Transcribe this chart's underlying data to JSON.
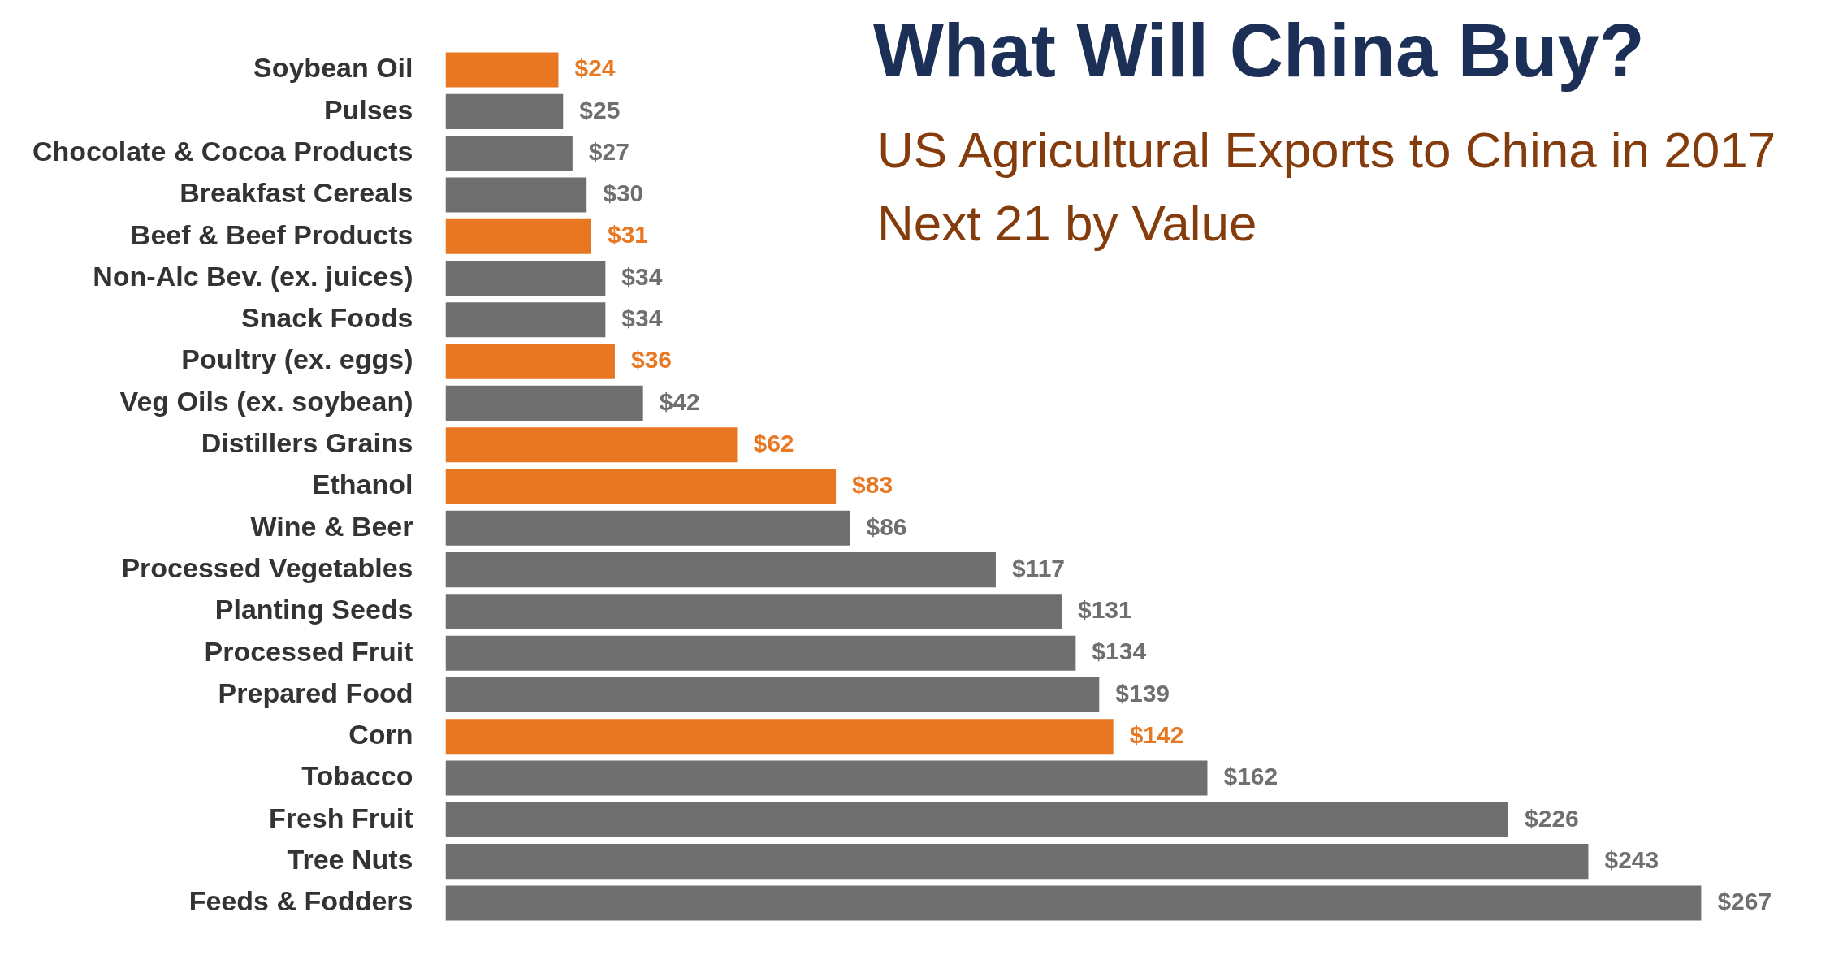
{
  "chart_data": {
    "type": "bar",
    "orientation": "horizontal",
    "title": "What Will China Buy?",
    "subtitle": "US Agricultural Exports to China in 2017\nNext 21 by Value",
    "categories": [
      "Soybean Oil",
      "Pulses",
      "Chocolate & Cocoa Products",
      "Breakfast Cereals",
      "Beef & Beef Products",
      "Non-Alc Bev. (ex. juices)",
      "Snack Foods",
      "Poultry (ex. eggs)",
      "Veg Oils (ex. soybean)",
      "Distillers Grains",
      "Ethanol",
      "Wine & Beer",
      "Processed Vegetables",
      "Planting Seeds",
      "Processed Fruit",
      "Prepared Food",
      "Corn",
      "Tobacco",
      "Fresh Fruit",
      "Tree Nuts",
      "Feeds & Fodders"
    ],
    "values": [
      24,
      25,
      27,
      30,
      31,
      34,
      34,
      36,
      42,
      62,
      83,
      86,
      117,
      131,
      134,
      139,
      142,
      162,
      226,
      243,
      267
    ],
    "value_labels": [
      "$24",
      "$25",
      "$27",
      "$30",
      "$31",
      "$34",
      "$34",
      "$36",
      "$42",
      "$62",
      "$83",
      "$86",
      "$117",
      "$131",
      "$134",
      "$139",
      "$142",
      "$162",
      "$226",
      "$243",
      "$267"
    ],
    "colors": [
      "#e87722",
      "#6f6f6f",
      "#6f6f6f",
      "#6f6f6f",
      "#e87722",
      "#6f6f6f",
      "#6f6f6f",
      "#e87722",
      "#6f6f6f",
      "#e87722",
      "#e87722",
      "#6f6f6f",
      "#6f6f6f",
      "#6f6f6f",
      "#6f6f6f",
      "#6f6f6f",
      "#e87722",
      "#6f6f6f",
      "#6f6f6f",
      "#6f6f6f",
      "#6f6f6f"
    ],
    "grid": false,
    "legend": false
  }
}
